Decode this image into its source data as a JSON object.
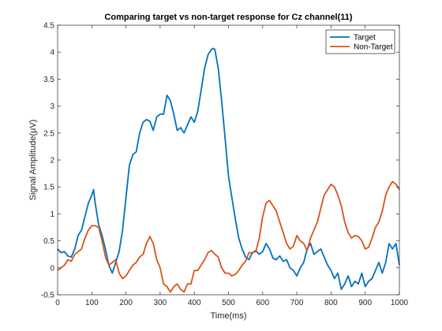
{
  "chart_data": {
    "type": "line",
    "title": "Comparing target vs non-target response for Cz channel(11)",
    "xlabel": "Time(ms)",
    "ylabel": "Signal Amplitude(μV)",
    "xlim": [
      0,
      1000
    ],
    "ylim": [
      -0.5,
      4.5
    ],
    "xticks": [
      0,
      100,
      200,
      300,
      400,
      500,
      600,
      700,
      800,
      900,
      1000
    ],
    "yticks": [
      -0.5,
      0,
      0.5,
      1,
      1.5,
      2,
      2.5,
      3,
      3.5,
      4,
      4.5
    ],
    "grid": false,
    "legend_position": "top-right",
    "series": [
      {
        "name": "Target",
        "color": "#0072BD",
        "x": [
          0,
          10,
          20,
          30,
          40,
          50,
          60,
          70,
          80,
          90,
          100,
          105,
          110,
          120,
          130,
          140,
          150,
          160,
          170,
          180,
          190,
          200,
          210,
          220,
          230,
          240,
          250,
          260,
          270,
          280,
          290,
          300,
          310,
          320,
          330,
          340,
          350,
          360,
          370,
          380,
          390,
          400,
          410,
          420,
          430,
          440,
          450,
          455,
          460,
          470,
          480,
          490,
          500,
          510,
          520,
          530,
          540,
          550,
          560,
          570,
          580,
          590,
          600,
          610,
          620,
          630,
          640,
          650,
          660,
          670,
          680,
          690,
          700,
          710,
          720,
          730,
          740,
          750,
          760,
          770,
          780,
          790,
          800,
          810,
          820,
          830,
          840,
          850,
          860,
          870,
          880,
          890,
          900,
          910,
          920,
          930,
          940,
          950,
          960,
          970,
          980,
          990,
          1000
        ],
        "values": [
          0.35,
          0.28,
          0.3,
          0.22,
          0.2,
          0.35,
          0.6,
          0.7,
          0.95,
          1.2,
          1.35,
          1.45,
          1.2,
          0.8,
          0.6,
          0.35,
          0.05,
          -0.1,
          0.1,
          0.3,
          0.7,
          1.3,
          1.9,
          2.1,
          2.15,
          2.5,
          2.7,
          2.75,
          2.72,
          2.55,
          2.8,
          2.85,
          2.85,
          3.2,
          3.1,
          2.85,
          2.55,
          2.6,
          2.5,
          2.65,
          2.8,
          2.7,
          2.9,
          3.3,
          3.7,
          3.95,
          4.05,
          4.07,
          4.05,
          3.7,
          3.1,
          2.4,
          1.7,
          1.3,
          0.9,
          0.55,
          0.35,
          0.2,
          0.15,
          0.28,
          0.32,
          0.25,
          0.3,
          0.45,
          0.35,
          0.18,
          0.15,
          0.22,
          0.12,
          0.15,
          0.0,
          -0.05,
          -0.15,
          0.0,
          0.1,
          0.35,
          0.45,
          0.25,
          0.3,
          0.35,
          0.2,
          0.05,
          -0.05,
          -0.2,
          -0.1,
          -0.4,
          -0.3,
          -0.15,
          -0.35,
          -0.25,
          -0.3,
          -0.1,
          -0.35,
          -0.25,
          -0.2,
          -0.05,
          0.1,
          -0.1,
          0.1,
          0.45,
          0.35,
          0.45,
          0.05
        ]
      },
      {
        "name": "Non-Target",
        "color": "#D95319",
        "x": [
          0,
          10,
          20,
          30,
          40,
          50,
          60,
          70,
          80,
          90,
          100,
          110,
          120,
          130,
          140,
          150,
          160,
          170,
          180,
          190,
          200,
          210,
          220,
          230,
          240,
          250,
          260,
          270,
          280,
          290,
          300,
          310,
          320,
          330,
          340,
          350,
          360,
          370,
          380,
          390,
          400,
          410,
          420,
          430,
          440,
          450,
          460,
          470,
          480,
          490,
          500,
          510,
          520,
          530,
          540,
          550,
          560,
          570,
          580,
          590,
          600,
          610,
          620,
          630,
          640,
          650,
          660,
          670,
          680,
          690,
          700,
          710,
          720,
          730,
          740,
          750,
          760,
          770,
          780,
          790,
          800,
          810,
          820,
          830,
          840,
          850,
          860,
          870,
          880,
          890,
          900,
          910,
          920,
          930,
          940,
          950,
          960,
          970,
          980,
          990,
          1000
        ],
        "values": [
          -0.05,
          0.0,
          0.05,
          0.15,
          0.12,
          0.25,
          0.3,
          0.35,
          0.55,
          0.7,
          0.78,
          0.78,
          0.75,
          0.5,
          0.2,
          0.05,
          0.1,
          0.15,
          -0.1,
          -0.2,
          -0.15,
          -0.05,
          0.05,
          0.1,
          0.2,
          0.25,
          0.45,
          0.58,
          0.45,
          0.15,
          0.0,
          -0.3,
          -0.35,
          -0.45,
          -0.35,
          -0.3,
          -0.4,
          -0.45,
          -0.3,
          -0.3,
          -0.05,
          -0.05,
          0.05,
          0.15,
          0.28,
          0.32,
          0.25,
          0.2,
          0.0,
          -0.1,
          -0.1,
          -0.15,
          -0.12,
          -0.05,
          0.05,
          0.12,
          0.28,
          0.28,
          0.3,
          0.55,
          0.95,
          1.2,
          1.25,
          1.15,
          1.05,
          0.85,
          0.65,
          0.45,
          0.35,
          0.4,
          0.6,
          0.5,
          0.45,
          0.32,
          0.55,
          0.7,
          0.85,
          1.1,
          1.35,
          1.45,
          1.55,
          1.5,
          1.35,
          1.15,
          0.85,
          0.65,
          0.55,
          0.6,
          0.58,
          0.5,
          0.35,
          0.38,
          0.55,
          0.75,
          0.85,
          1.05,
          1.35,
          1.5,
          1.6,
          1.55,
          1.45
        ]
      }
    ]
  }
}
